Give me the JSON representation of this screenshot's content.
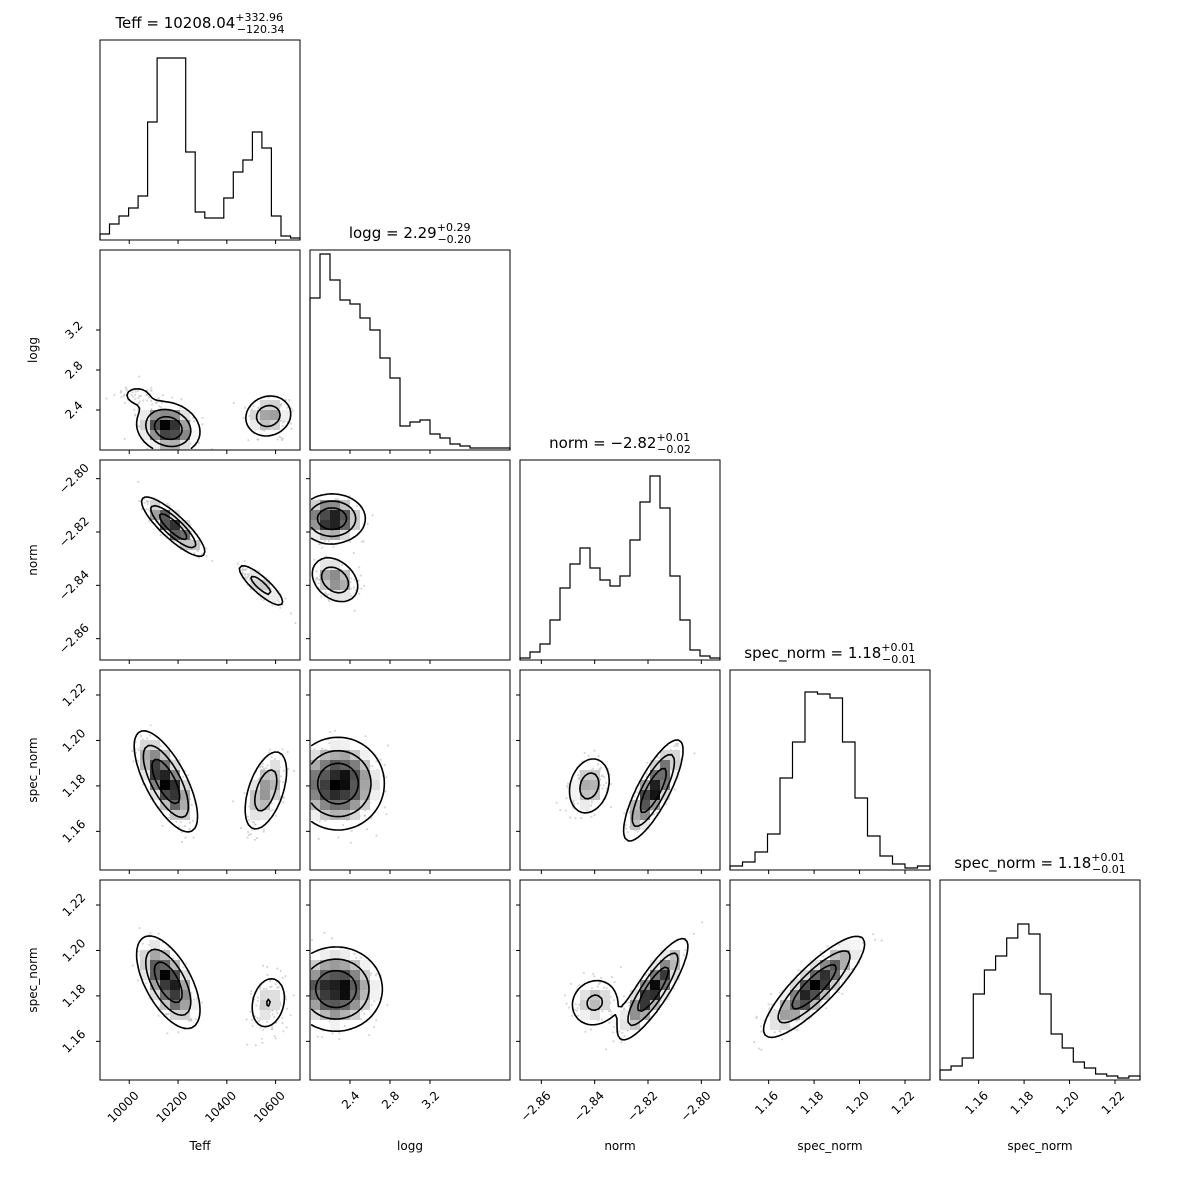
{
  "chart_data": {
    "type": "corner",
    "parameters": [
      {
        "name": "Teff",
        "label": "Teff",
        "range": [
          9880,
          10700
        ],
        "ticks": [
          10000,
          10200,
          10400,
          10600
        ],
        "tick_labels": [
          "10000",
          "10200",
          "10400",
          "10600"
        ],
        "title": {
          "prefix": "Teff = ",
          "median": "10208.04",
          "plus": "+332.96",
          "minus": "−120.34"
        }
      },
      {
        "name": "logg",
        "label": "logg",
        "range": [
          2.0,
          4.0
        ],
        "ticks": [
          2.4,
          2.8,
          3.2
        ],
        "tick_labels": [
          "2.4",
          "2.8",
          "3.2"
        ],
        "title": {
          "prefix": "logg = ",
          "median": "2.29",
          "plus": "+0.29",
          "minus": "−0.20"
        }
      },
      {
        "name": "norm",
        "label": "norm",
        "range": [
          -2.868,
          -2.793
        ],
        "ticks": [
          -2.86,
          -2.84,
          -2.82,
          -2.8
        ],
        "tick_labels": [
          "−2.86",
          "−2.84",
          "−2.82",
          "−2.80"
        ],
        "title": {
          "prefix": "norm = ",
          "median": "−2.82",
          "plus": "+0.01",
          "minus": "−0.02"
        }
      },
      {
        "name": "spec_norm",
        "label": "spec_norm",
        "range": [
          1.143,
          1.231
        ],
        "ticks": [
          1.16,
          1.18,
          1.2,
          1.22
        ],
        "tick_labels": [
          "1.16",
          "1.18",
          "1.20",
          "1.22"
        ],
        "title": {
          "prefix": "spec_norm = ",
          "median": "1.18",
          "plus": "+0.01",
          "minus": "−0.01"
        }
      },
      {
        "name": "spec_norm",
        "label": "spec_norm",
        "range": [
          1.143,
          1.231
        ],
        "ticks": [
          1.16,
          1.18,
          1.2,
          1.22
        ],
        "tick_labels": [
          "1.16",
          "1.18",
          "1.20",
          "1.22"
        ],
        "title": {
          "prefix": "spec_norm = ",
          "median": "1.18",
          "plus": "+0.01",
          "minus": "−0.01"
        }
      }
    ],
    "histograms": [
      [
        0.03,
        0.08,
        0.12,
        0.16,
        0.22,
        0.59,
        0.91,
        0.91,
        0.91,
        0.44,
        0.14,
        0.11,
        0.11,
        0.21,
        0.34,
        0.4,
        0.54,
        0.46,
        0.12,
        0.02,
        0.01
      ],
      [
        0.76,
        0.98,
        0.85,
        0.75,
        0.73,
        0.66,
        0.6,
        0.46,
        0.36,
        0.12,
        0.14,
        0.15,
        0.08,
        0.06,
        0.03,
        0.02,
        0.01,
        0.01,
        0.01,
        0.01
      ],
      [
        0.01,
        0.04,
        0.08,
        0.2,
        0.36,
        0.48,
        0.56,
        0.46,
        0.4,
        0.37,
        0.42,
        0.6,
        0.79,
        0.92,
        0.76,
        0.42,
        0.2,
        0.05,
        0.02,
        0.01
      ],
      [
        0.02,
        0.04,
        0.09,
        0.18,
        0.46,
        0.64,
        0.89,
        0.88,
        0.86,
        0.64,
        0.36,
        0.17,
        0.07,
        0.03,
        0.01,
        0.02
      ],
      [
        0.05,
        0.07,
        0.11,
        0.43,
        0.55,
        0.62,
        0.71,
        0.78,
        0.73,
        0.43,
        0.23,
        0.16,
        0.09,
        0.06,
        0.03,
        0.02,
        0.01,
        0.02
      ]
    ],
    "title_font_px": 15,
    "axis_label_font_px": 12,
    "tick_font_px": 12
  }
}
